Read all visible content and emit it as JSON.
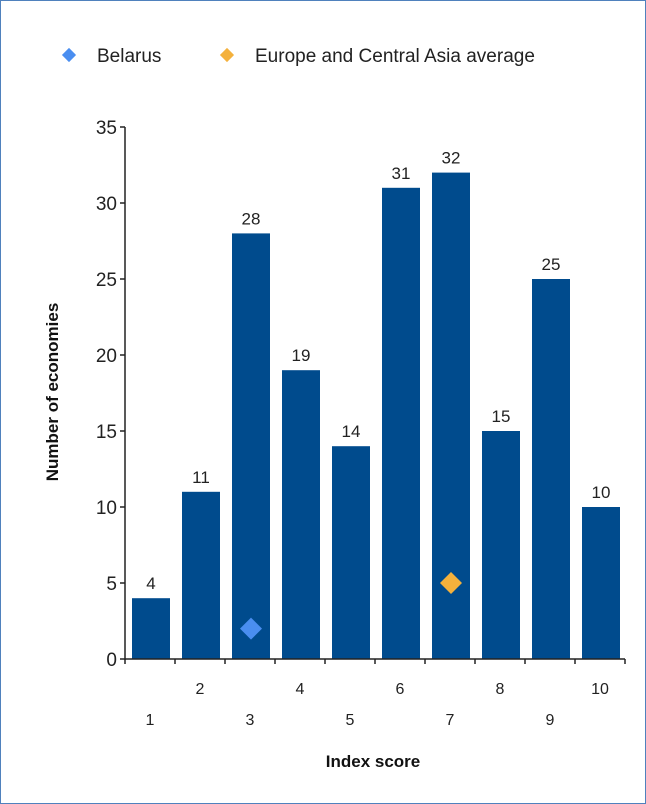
{
  "chart_data": {
    "type": "bar",
    "categories": [
      "1",
      "2",
      "3",
      "4",
      "5",
      "6",
      "7",
      "8",
      "9",
      "10"
    ],
    "values": [
      4,
      11,
      28,
      19,
      14,
      31,
      32,
      15,
      25,
      10
    ],
    "xlabel": "Index score",
    "ylabel": "Number of economies",
    "ylim": [
      0,
      35
    ],
    "yticks": [
      0,
      5,
      10,
      15,
      20,
      25,
      30,
      35
    ],
    "legend_position": "top",
    "grid": false,
    "bar_color": "#004b8d",
    "markers": [
      {
        "name": "Belarus",
        "x": 3,
        "y": 2,
        "color": "#4a8ef0"
      },
      {
        "name": "Europe and Central Asia average",
        "x": 7,
        "y": 5,
        "color": "#f4b13c"
      }
    ]
  }
}
